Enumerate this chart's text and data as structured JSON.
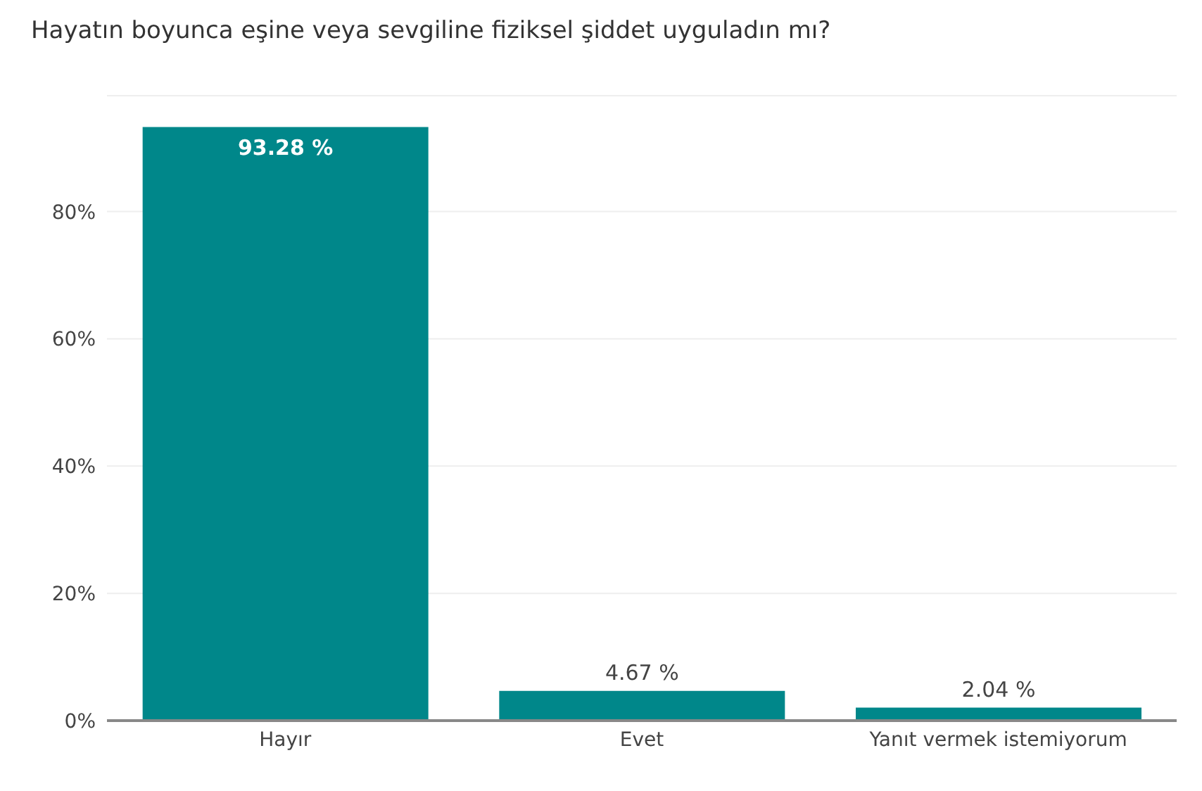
{
  "chart_data": {
    "type": "bar",
    "title": "Hayatın boyunca eşine veya sevgiline fiziksel şiddet uyguladın mı?",
    "categories": [
      "Hayır",
      "Evet",
      "Yanıt vermek istemiyorum"
    ],
    "values": [
      93.28,
      4.67,
      2.04
    ],
    "value_labels": [
      "93.28 %",
      "4.67 %",
      "2.04 %"
    ],
    "color": "#00878a",
    "ylim": [
      0,
      98.2
    ],
    "yticks": [
      {
        "value": 0,
        "label": "0%"
      },
      {
        "value": 20,
        "label": "20%"
      },
      {
        "value": 40,
        "label": "40%"
      },
      {
        "value": 60,
        "label": "60%"
      },
      {
        "value": 80,
        "label": "80%"
      }
    ],
    "grid": "y",
    "legend": false
  }
}
